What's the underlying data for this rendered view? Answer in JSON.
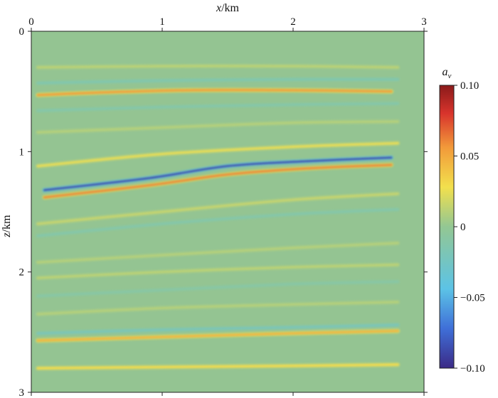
{
  "chart_data": {
    "type": "heatmap",
    "title": "",
    "xlabel": {
      "var": "x",
      "unit": "/km"
    },
    "ylabel": {
      "var": "z",
      "unit": "/km"
    },
    "xlim": [
      0,
      3
    ],
    "ylim": [
      0,
      3
    ],
    "y_inverted": true,
    "x_ticks": [
      0,
      1,
      2,
      3
    ],
    "x_tick_labels": [
      "0",
      "1",
      "2",
      "3"
    ],
    "y_ticks": [
      0,
      1,
      2,
      3
    ],
    "y_tick_labels": [
      "0",
      "1",
      "2",
      "3"
    ],
    "colorbar": {
      "label": {
        "var": "a",
        "sub": "v"
      },
      "range": [
        -0.1,
        0.1
      ],
      "ticks": [
        0.1,
        0.05,
        0,
        -0.05,
        -0.1
      ],
      "tick_labels": [
        "0.10",
        "0.05",
        "0",
        "−0.05",
        "−0.10"
      ],
      "colormap": [
        "#3b2a86",
        "#3f6fd8",
        "#5cc3e6",
        "#93c793",
        "#f2e04d",
        "#f29a3a",
        "#d8342c",
        "#8a1a1a"
      ]
    },
    "background_color": "#94c492",
    "reflectors": [
      {
        "x": [
          0.05,
          0.5,
          1.2,
          2.0,
          2.75
        ],
        "z": [
          0.53,
          0.51,
          0.49,
          0.49,
          0.5
        ],
        "amp": 0.055,
        "sigma": 0.022
      },
      {
        "x": [
          0.1,
          0.9,
          1.5,
          2.1,
          2.75
        ],
        "z": [
          1.32,
          1.22,
          1.12,
          1.08,
          1.05
        ],
        "amp": -0.085,
        "sigma": 0.02
      },
      {
        "x": [
          0.1,
          0.9,
          1.5,
          2.1,
          2.75
        ],
        "z": [
          1.38,
          1.28,
          1.19,
          1.14,
          1.11
        ],
        "amp": 0.06,
        "sigma": 0.018
      },
      {
        "x": [
          0.05,
          1.0,
          2.0,
          2.8
        ],
        "z": [
          1.12,
          1.02,
          0.96,
          0.93
        ],
        "amp": 0.025,
        "sigma": 0.02
      },
      {
        "x": [
          0.05,
          1.0,
          2.0,
          2.8
        ],
        "z": [
          2.57,
          2.54,
          2.51,
          2.49
        ],
        "amp": 0.045,
        "sigma": 0.02
      },
      {
        "x": [
          0.05,
          1.0,
          2.0,
          2.8
        ],
        "z": [
          2.51,
          2.48,
          2.46,
          2.44
        ],
        "amp": -0.02,
        "sigma": 0.018
      },
      {
        "x": [
          0.05,
          1.0,
          2.0,
          2.8
        ],
        "z": [
          2.8,
          2.79,
          2.78,
          2.77
        ],
        "amp": 0.03,
        "sigma": 0.02
      },
      {
        "x": [
          0.05,
          1.0,
          2.0,
          2.8
        ],
        "z": [
          0.3,
          0.29,
          0.29,
          0.3
        ],
        "amp": 0.012,
        "sigma": 0.02
      },
      {
        "x": [
          0.05,
          1.0,
          2.0,
          2.8
        ],
        "z": [
          0.43,
          0.41,
          0.4,
          0.4
        ],
        "amp": -0.015,
        "sigma": 0.02
      },
      {
        "x": [
          0.05,
          1.0,
          2.0,
          2.8
        ],
        "z": [
          0.66,
          0.63,
          0.61,
          0.6
        ],
        "amp": -0.012,
        "sigma": 0.02
      },
      {
        "x": [
          0.05,
          1.0,
          2.0,
          2.8
        ],
        "z": [
          0.84,
          0.8,
          0.76,
          0.75
        ],
        "amp": 0.01,
        "sigma": 0.02
      },
      {
        "x": [
          0.05,
          1.0,
          2.0,
          2.8
        ],
        "z": [
          1.6,
          1.5,
          1.4,
          1.35
        ],
        "amp": 0.015,
        "sigma": 0.02
      },
      {
        "x": [
          0.05,
          1.0,
          2.0,
          2.8
        ],
        "z": [
          1.7,
          1.6,
          1.52,
          1.48
        ],
        "amp": -0.012,
        "sigma": 0.02
      },
      {
        "x": [
          0.05,
          1.0,
          2.0,
          2.8
        ],
        "z": [
          1.92,
          1.86,
          1.8,
          1.76
        ],
        "amp": 0.01,
        "sigma": 0.02
      },
      {
        "x": [
          0.05,
          1.0,
          2.0,
          2.8
        ],
        "z": [
          2.05,
          2.0,
          1.96,
          1.94
        ],
        "amp": 0.012,
        "sigma": 0.02
      },
      {
        "x": [
          0.05,
          1.0,
          2.0,
          2.8
        ],
        "z": [
          2.2,
          2.15,
          2.1,
          2.08
        ],
        "amp": -0.01,
        "sigma": 0.02
      },
      {
        "x": [
          0.05,
          1.0,
          2.0,
          2.8
        ],
        "z": [
          2.35,
          2.3,
          2.27,
          2.25
        ],
        "amp": 0.01,
        "sigma": 0.02
      }
    ]
  }
}
